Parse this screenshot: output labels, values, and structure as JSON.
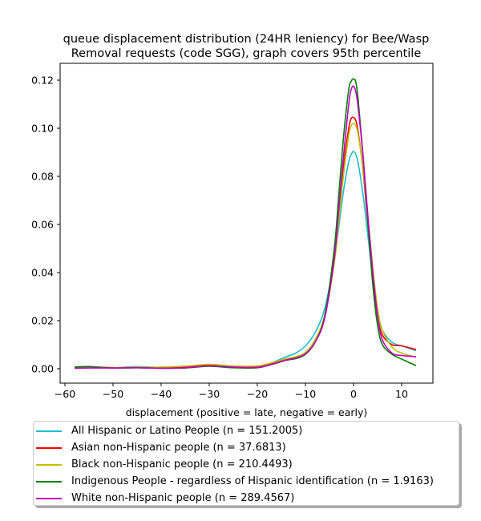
{
  "chart_data": {
    "type": "line",
    "title": "queue displacement distribution (24HR leniency) for Bee/Wasp\nRemoval  requests (code SGG), graph covers 95th percentile",
    "xlabel": "displacement (positive = late, negative = early)",
    "ylabel": "",
    "xlim": [
      -61,
      16.5
    ],
    "ylim": [
      -0.006,
      0.127
    ],
    "xticks": [
      -60,
      -50,
      -40,
      -30,
      -20,
      -10,
      0,
      10
    ],
    "xtick_labels": [
      "−60",
      "−50",
      "−40",
      "−30",
      "−20",
      "−10",
      "0",
      "10"
    ],
    "yticks": [
      0.0,
      0.02,
      0.04,
      0.06,
      0.08,
      0.1,
      0.12
    ],
    "ytick_labels": [
      "0.00",
      "0.02",
      "0.04",
      "0.06",
      "0.08",
      "0.10",
      "0.12"
    ],
    "grid": false,
    "legend_position": "below",
    "series": [
      {
        "name": "All Hispanic or Latino People (n = 151.2005)",
        "color": "#17becf",
        "x": [
          -58,
          -55,
          -50,
          -45,
          -40,
          -35,
          -30,
          -25,
          -20,
          -17,
          -14,
          -12,
          -10,
          -8,
          -6,
          -4,
          -3,
          -2,
          -1,
          -0.5,
          0,
          0.5,
          1,
          2,
          3,
          4,
          5,
          6,
          8,
          10,
          13
        ],
        "y": [
          0.0005,
          0.0008,
          0.0004,
          0.0009,
          0.0004,
          0.0005,
          0.0012,
          0.0006,
          0.0008,
          0.0025,
          0.005,
          0.0065,
          0.0095,
          0.015,
          0.025,
          0.045,
          0.06,
          0.075,
          0.086,
          0.089,
          0.0903,
          0.089,
          0.085,
          0.072,
          0.055,
          0.038,
          0.024,
          0.016,
          0.011,
          0.0095,
          0.0075
        ]
      },
      {
        "name": "Asian non-Hispanic people (n = 37.6813)",
        "color": "#ff0000",
        "x": [
          -58,
          -55,
          -50,
          -45,
          -40,
          -35,
          -30,
          -25,
          -20,
          -17,
          -14,
          -12,
          -10,
          -8,
          -6,
          -4,
          -3,
          -2,
          -1,
          -0.5,
          0,
          0.5,
          1,
          2,
          3,
          4,
          5,
          6,
          8,
          10,
          13
        ],
        "y": [
          0.0003,
          0.0005,
          0.0004,
          0.0006,
          0.0003,
          0.0006,
          0.0014,
          0.0008,
          0.0006,
          0.002,
          0.0038,
          0.0048,
          0.0065,
          0.012,
          0.022,
          0.045,
          0.065,
          0.085,
          0.1,
          0.104,
          0.1045,
          0.103,
          0.098,
          0.082,
          0.06,
          0.038,
          0.022,
          0.014,
          0.01,
          0.0095,
          0.008
        ]
      },
      {
        "name": "Black non-Hispanic people (n = 210.4493)",
        "color": "#bfbf00",
        "x": [
          -58,
          -55,
          -50,
          -45,
          -40,
          -35,
          -30,
          -25,
          -20,
          -17,
          -14,
          -12,
          -10,
          -8,
          -6,
          -4,
          -3,
          -2,
          -1,
          -0.5,
          0,
          0.5,
          1,
          2,
          3,
          4,
          5,
          6,
          8,
          10,
          13
        ],
        "y": [
          0.0005,
          0.0008,
          0.0005,
          0.0006,
          0.0007,
          0.0011,
          0.0018,
          0.0011,
          0.0012,
          0.0025,
          0.0042,
          0.005,
          0.0068,
          0.012,
          0.022,
          0.044,
          0.063,
          0.082,
          0.097,
          0.101,
          0.102,
          0.101,
          0.097,
          0.083,
          0.063,
          0.042,
          0.025,
          0.016,
          0.009,
          0.0065,
          0.0048
        ]
      },
      {
        "name": "Indigenous People - regardless of Hispanic identification (n = 1.9163)",
        "color": "#008000",
        "x": [
          -58,
          -55,
          -50,
          -45,
          -40,
          -35,
          -30,
          -25,
          -20,
          -17,
          -14,
          -12,
          -10,
          -8,
          -6,
          -4,
          -3,
          -2,
          -1,
          -0.5,
          0,
          0.5,
          1,
          2,
          3,
          4,
          5,
          6,
          8,
          10,
          13
        ],
        "y": [
          0.0007,
          0.0009,
          0.0003,
          0.0004,
          0.0002,
          0.0003,
          0.001,
          0.0004,
          0.0004,
          0.0018,
          0.0035,
          0.0042,
          0.006,
          0.011,
          0.022,
          0.05,
          0.074,
          0.098,
          0.116,
          0.1195,
          0.1205,
          0.119,
          0.111,
          0.088,
          0.06,
          0.035,
          0.018,
          0.01,
          0.006,
          0.004,
          0.0013
        ]
      },
      {
        "name": "White non-Hispanic people (n = 289.4567)",
        "color": "#bf00bf",
        "x": [
          -58,
          -55,
          -50,
          -45,
          -40,
          -35,
          -30,
          -25,
          -20,
          -17,
          -14,
          -12,
          -10,
          -8,
          -6,
          -4,
          -3,
          -2,
          -1,
          -0.5,
          0,
          0.5,
          1,
          2,
          3,
          4,
          5,
          6,
          8,
          10,
          13
        ],
        "y": [
          0.0002,
          0.0003,
          0.0003,
          0.0004,
          0.0002,
          0.0004,
          0.0012,
          0.0007,
          0.0005,
          0.0018,
          0.0036,
          0.0045,
          0.0062,
          0.011,
          0.021,
          0.046,
          0.068,
          0.09,
          0.11,
          0.116,
          0.1175,
          0.115,
          0.108,
          0.088,
          0.063,
          0.04,
          0.022,
          0.012,
          0.0065,
          0.0055,
          0.005
        ]
      }
    ]
  }
}
